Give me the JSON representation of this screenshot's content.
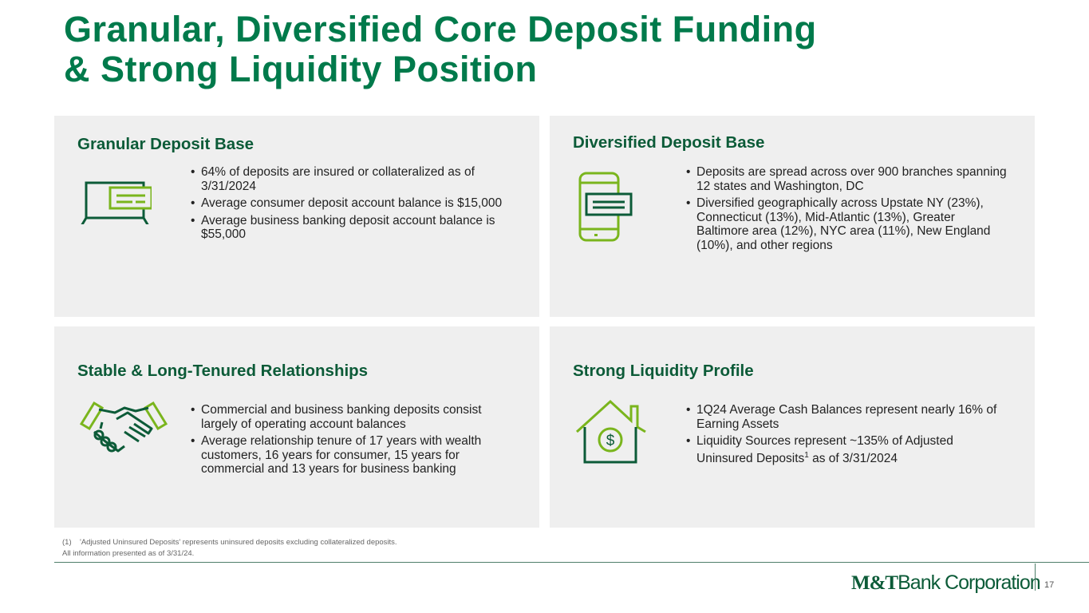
{
  "header": {
    "title_line1": "Granular, Diversified Core Deposit Funding",
    "title_line2": "& Strong Liquidity Position"
  },
  "panels": [
    {
      "title": "Granular Deposit Base",
      "bullets": [
        {
          "text": "64% of deposits are insured or collateralized as of 3/31/2024"
        },
        {
          "text": "Average consumer deposit account balance is $15,000"
        },
        {
          "text": "Average business banking deposit account balance is $55,000"
        }
      ]
    },
    {
      "title": "Diversified Deposit Base",
      "bullets": [
        {
          "text": "Deposits are spread across over 900 branches spanning 12 states and Washington, DC"
        },
        {
          "text": "Diversified geographically across Upstate NY (23%), Connecticut (13%), Mid-Atlantic (13%), Greater Baltimore area (12%), NYC area (11%), New England (10%), and other regions"
        }
      ]
    },
    {
      "title": "Stable & Long-Tenured Relationships",
      "bullets": [
        {
          "text": "Commercial and business banking deposits consist largely of operating account balances"
        },
        {
          "text": "Average relationship tenure of 17 years with wealth customers, 16 years for consumer, 15 years for commercial and 13 years for business banking"
        }
      ]
    },
    {
      "title": "Strong Liquidity Profile",
      "bullets": [
        {
          "text": "1Q24 Average Cash Balances represent nearly 16% of Earning Assets"
        },
        {
          "text": "Liquidity Sources represent ~135% of Adjusted Uninsured Deposits",
          "sup": "1",
          "after": " as of 3/31/2024"
        }
      ]
    }
  ],
  "footnote": {
    "marker": "(1)",
    "text": "'Adjusted Uninsured Deposits' represents uninsured deposits excluding collateralized deposits.",
    "note": "All information presented as of 3/31/24."
  },
  "footer": {
    "logo_mark": "M&T",
    "logo_text": "Bank Corporation",
    "page_number": "17"
  }
}
